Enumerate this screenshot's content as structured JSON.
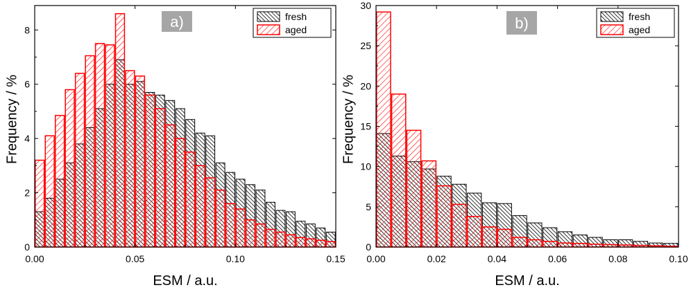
{
  "colors": {
    "fresh_edge": "#000000",
    "fresh_hatch": "#000000",
    "aged_edge": "#ff0000",
    "aged_hatch": "#ff0000",
    "panel_label_bg": "#a6a6a6",
    "panel_label_text": "#ffffff"
  },
  "chart_data": [
    {
      "type": "bar",
      "panel_label": "a)",
      "xlabel": "ESM / a.u.",
      "ylabel": "Frequency / %",
      "xlim": [
        0.0,
        0.15
      ],
      "ylim": [
        0,
        8.9
      ],
      "bin_width": 0.005,
      "xticks": [
        0.0,
        0.05,
        0.1,
        0.15
      ],
      "xtick_labels": [
        "0.00",
        "0.05",
        "0.10",
        "0.15"
      ],
      "yticks": [
        0,
        2,
        4,
        6,
        8
      ],
      "ytick_labels": [
        "0",
        "2",
        "4",
        "6",
        "8"
      ],
      "legend_position": "top-right",
      "bin_starts": [
        0.0,
        0.005,
        0.01,
        0.015,
        0.02,
        0.025,
        0.03,
        0.035,
        0.04,
        0.045,
        0.05,
        0.055,
        0.06,
        0.065,
        0.07,
        0.075,
        0.08,
        0.085,
        0.09,
        0.095,
        0.1,
        0.105,
        0.11,
        0.115,
        0.12,
        0.125,
        0.13,
        0.135,
        0.14,
        0.145
      ],
      "series": [
        {
          "name": "fresh",
          "values": [
            1.3,
            1.8,
            2.5,
            3.1,
            3.8,
            4.4,
            5.1,
            6.0,
            6.9,
            6.0,
            6.1,
            5.7,
            5.6,
            5.4,
            5.1,
            4.7,
            4.2,
            4.1,
            3.1,
            2.75,
            2.5,
            2.3,
            2.1,
            1.65,
            1.35,
            1.3,
            0.95,
            0.85,
            0.7,
            0.55
          ]
        },
        {
          "name": "aged",
          "values": [
            3.2,
            4.1,
            4.85,
            5.8,
            6.4,
            7.05,
            7.5,
            7.45,
            8.6,
            6.5,
            6.3,
            5.6,
            5.1,
            4.5,
            4.0,
            3.5,
            3.0,
            2.55,
            2.1,
            1.6,
            1.4,
            1.0,
            0.85,
            0.65,
            0.55,
            0.45,
            0.35,
            0.3,
            0.25,
            0.2
          ]
        }
      ]
    },
    {
      "type": "bar",
      "panel_label": "b)",
      "xlabel": "ESM / a.u.",
      "ylabel": "Frequency / %",
      "xlim": [
        0.0,
        0.1
      ],
      "ylim": [
        0,
        30
      ],
      "bin_width": 0.005,
      "xticks": [
        0.0,
        0.02,
        0.04,
        0.06,
        0.08,
        0.1
      ],
      "xtick_labels": [
        "0.00",
        "0.02",
        "0.04",
        "0.06",
        "0.08",
        "0.10"
      ],
      "yticks": [
        0,
        5,
        10,
        15,
        20,
        25,
        30
      ],
      "ytick_labels": [
        "0",
        "5",
        "10",
        "15",
        "20",
        "25",
        "30"
      ],
      "legend_position": "top-right",
      "bin_starts": [
        0.0,
        0.005,
        0.01,
        0.015,
        0.02,
        0.025,
        0.03,
        0.035,
        0.04,
        0.045,
        0.05,
        0.055,
        0.06,
        0.065,
        0.07,
        0.075,
        0.08,
        0.085,
        0.09,
        0.095
      ],
      "series": [
        {
          "name": "fresh",
          "values": [
            14.1,
            11.3,
            10.6,
            9.7,
            8.8,
            7.8,
            6.7,
            5.5,
            5.4,
            3.9,
            3.0,
            2.4,
            1.9,
            1.5,
            1.2,
            0.9,
            0.9,
            0.7,
            0.5,
            0.45
          ]
        },
        {
          "name": "aged",
          "values": [
            29.2,
            19.0,
            14.5,
            10.7,
            7.6,
            5.3,
            3.8,
            2.5,
            2.2,
            1.2,
            0.9,
            0.7,
            0.5,
            0.45,
            0.35,
            0.3,
            0.25,
            0.2,
            0.15,
            0.1
          ]
        }
      ]
    }
  ]
}
